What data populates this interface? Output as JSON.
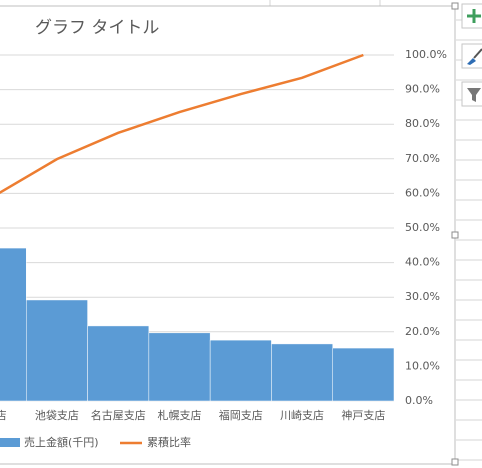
{
  "chart_data": {
    "type": "pareto",
    "title": "グラフ タイトル",
    "categories": [
      "支店",
      "池袋支店",
      "名古屋支店",
      "札幌支店",
      "福岡支店",
      "川崎支店",
      "神戸支店"
    ],
    "series": [
      {
        "name": "売上金額(千円)",
        "color": "#5b9bd5",
        "values": [
          44.2,
          29.2,
          21.7,
          19.7,
          17.6,
          16.5,
          15.3
        ]
      },
      {
        "name": "累積比率",
        "color": "#ed7d31",
        "axis": "y2",
        "values": [
          59.5,
          69.9,
          77.5,
          83.5,
          88.7,
          93.4,
          100
        ]
      }
    ],
    "y2lim": [
      0,
      100
    ],
    "y2ticks": [
      {
        "value": 0,
        "label": "0.0%"
      },
      {
        "value": 10,
        "label": "10.0%"
      },
      {
        "value": 20,
        "label": "20.0%"
      },
      {
        "value": 30,
        "label": "30.0%"
      },
      {
        "value": 40,
        "label": "40.0%"
      },
      {
        "value": 50,
        "label": "50.0%"
      },
      {
        "value": 60,
        "label": "60.0%"
      },
      {
        "value": 70,
        "label": "70.0%"
      },
      {
        "value": 80,
        "label": "80.0%"
      },
      {
        "value": 90,
        "label": "90.0%"
      },
      {
        "value": 100,
        "label": "100.0%"
      }
    ],
    "grid": true
  }
}
